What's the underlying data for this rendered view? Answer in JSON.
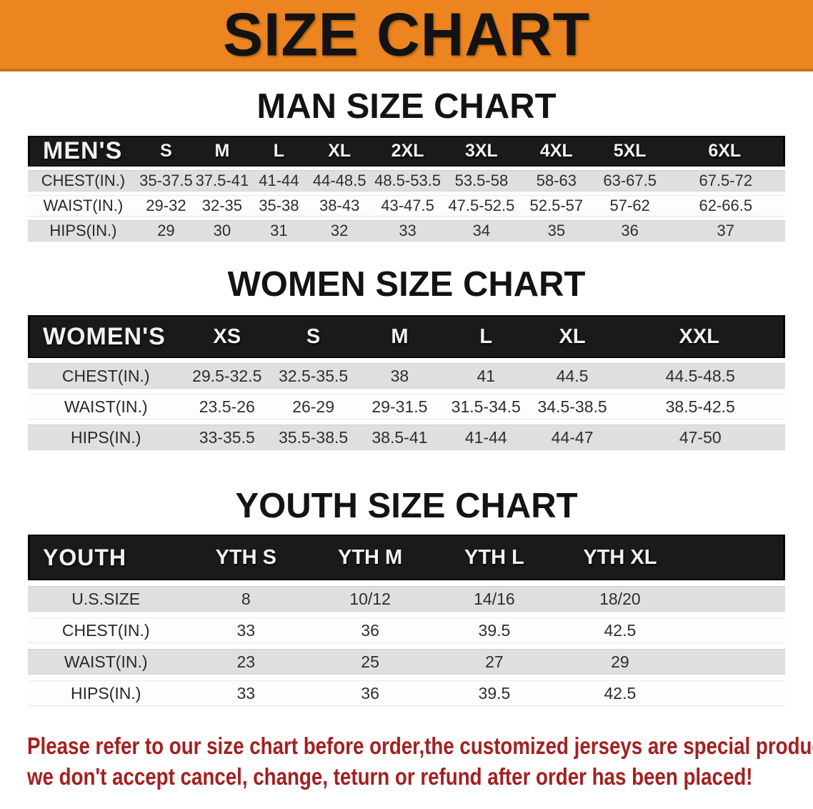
{
  "banner": {
    "title": "SIZE CHART"
  },
  "sections": [
    {
      "heading": "MAN SIZE CHART",
      "table": {
        "corner_label": "MEN'S",
        "columns": [
          "S",
          "M",
          "L",
          "XL",
          "2XL",
          "3XL",
          "4XL",
          "5XL",
          "6XL"
        ],
        "rows": [
          {
            "label": "CHEST(IN.)",
            "values": [
              "35-37.5",
              "37.5-41",
              "41-44",
              "44-48.5",
              "48.5-53.5",
              "53.5-58",
              "58-63",
              "63-67.5",
              "67.5-72"
            ]
          },
          {
            "label": "WAIST(IN.)",
            "values": [
              "29-32",
              "32-35",
              "35-38",
              "38-43",
              "43-47.5",
              "47.5-52.5",
              "52.5-57",
              "57-62",
              "62-66.5"
            ]
          },
          {
            "label": "HIPS(IN.)",
            "values": [
              "29",
              "30",
              "31",
              "32",
              "33",
              "34",
              "35",
              "36",
              "37"
            ]
          }
        ]
      }
    },
    {
      "heading": "WOMEN SIZE CHART",
      "table": {
        "corner_label": "WOMEN'S",
        "columns": [
          "XS",
          "S",
          "M",
          "L",
          "XL",
          "XXL"
        ],
        "rows": [
          {
            "label": "CHEST(IN.)",
            "values": [
              "29.5-32.5",
              "32.5-35.5",
              "38",
              "41",
              "44.5",
              "44.5-48.5"
            ]
          },
          {
            "label": "WAIST(IN.)",
            "values": [
              "23.5-26",
              "26-29",
              "29-31.5",
              "31.5-34.5",
              "34.5-38.5",
              "38.5-42.5"
            ]
          },
          {
            "label": "HIPS(IN.)",
            "values": [
              "33-35.5",
              "35.5-38.5",
              "38.5-41",
              "41-44",
              "44-47",
              "47-50"
            ]
          }
        ]
      }
    },
    {
      "heading": "YOUTH SIZE CHART",
      "table": {
        "corner_label": "YOUTH",
        "columns": [
          "YTH S",
          "YTH M",
          "YTH L",
          "YTH XL"
        ],
        "rows": [
          {
            "label": "U.S.SIZE",
            "values": [
              "8",
              "10/12",
              "14/16",
              "18/20"
            ]
          },
          {
            "label": "CHEST(IN.)",
            "values": [
              "33",
              "36",
              "39.5",
              "42.5"
            ]
          },
          {
            "label": "WAIST(IN.)",
            "values": [
              "23",
              "25",
              "27",
              "29"
            ]
          },
          {
            "label": "HIPS(IN.)",
            "values": [
              "33",
              "36",
              "39.5",
              "42.5"
            ]
          }
        ]
      }
    }
  ],
  "footer_note": {
    "lines": [
      "Please refer to our size chart before order,the customized jerseys are special products,",
      "we don't accept cancel, change, teturn or refund after order has been placed!"
    ]
  },
  "colors": {
    "banner_bg": "#EC8420",
    "banner_border": "#C9701D",
    "header_row_bg": "#1A1A19",
    "stripe_gray": "#DFDFE0",
    "footer_red": "#A32020"
  }
}
